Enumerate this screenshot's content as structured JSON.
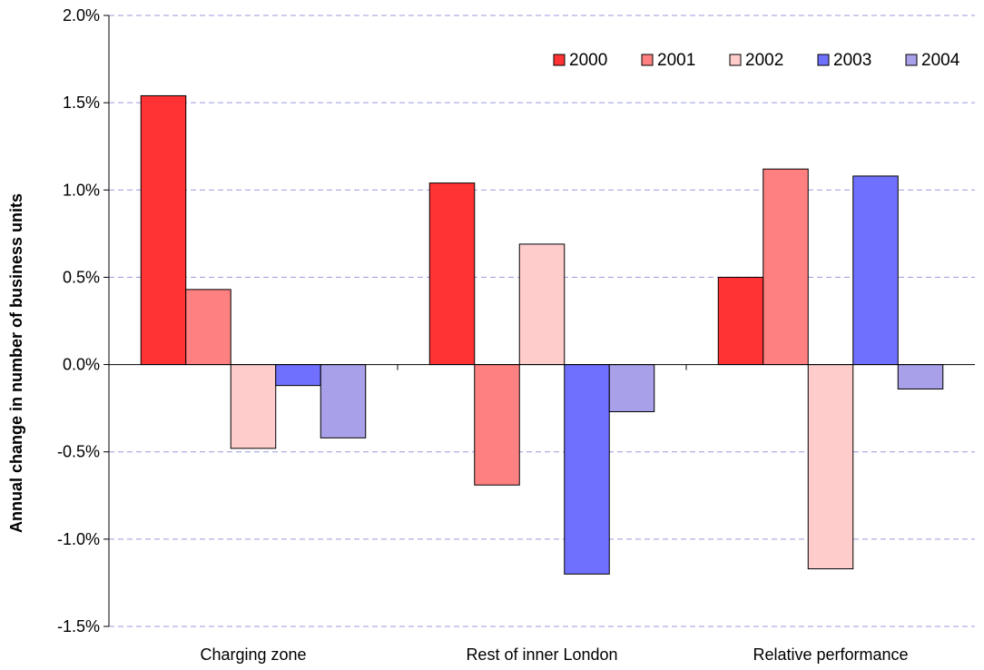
{
  "chart_data": {
    "type": "bar",
    "title": "",
    "xlabel": "",
    "ylabel": "Annual change in number of business units",
    "categories": [
      "Charging zone",
      "Rest of inner London",
      "Relative performance"
    ],
    "series": [
      {
        "name": "2000",
        "color": "#ff3333",
        "values": [
          1.54,
          1.04,
          0.5
        ]
      },
      {
        "name": "2001",
        "color": "#ff8080",
        "values": [
          0.43,
          -0.69,
          1.12
        ]
      },
      {
        "name": "2002",
        "color": "#ffcccc",
        "values": [
          -0.48,
          0.69,
          -1.17
        ]
      },
      {
        "name": "2003",
        "color": "#7070ff",
        "values": [
          -0.12,
          -1.2,
          1.08
        ]
      },
      {
        "name": "2004",
        "color": "#a8a0e8",
        "values": [
          -0.42,
          -0.27,
          -0.14
        ]
      }
    ],
    "ylim": [
      -1.5,
      2.0
    ],
    "yticks": [
      2.0,
      1.5,
      1.0,
      0.5,
      0.0,
      -0.5,
      -1.0,
      -1.5
    ],
    "ytick_labels": [
      "2.0%",
      "1.5%",
      "1.0%",
      "0.5%",
      "0.0%",
      "-0.5%",
      "-1.0%",
      "-1.5%"
    ],
    "grid": true,
    "grid_color": "#9999dd",
    "legend_position": "top-right"
  }
}
